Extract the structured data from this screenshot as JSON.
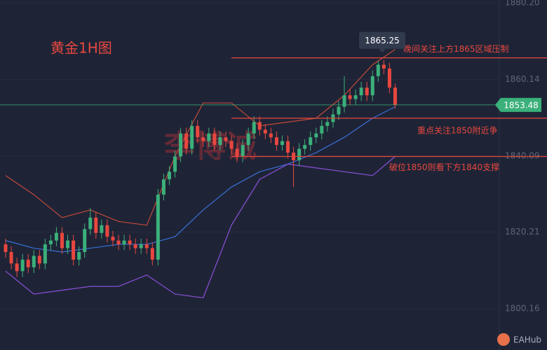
{
  "chart_data": {
    "type": "candlestick",
    "title": "黄金1H图",
    "watermark": "李博诚",
    "brand": "EAHub",
    "ylim": [
      1789.36,
      1880.93
    ],
    "yticks": [
      {
        "value": 1880.2,
        "label": "1880.20"
      },
      1860.14,
      1840.09,
      1820.21,
      1800.16
    ],
    "grid": true,
    "up_color": "#3bb07a",
    "down_color": "#e8473f",
    "open": [
      1817,
      1815,
      1812,
      1810,
      1813,
      1811,
      1814,
      1812,
      1817,
      1818,
      1820,
      1816,
      1818,
      1813,
      1815,
      1821,
      1824,
      1820,
      1822,
      1819,
      1818,
      1817,
      1818,
      1817,
      1816,
      1817,
      1816,
      1813,
      1830,
      1834,
      1836,
      1840,
      1846,
      1842,
      1848,
      1845,
      1844,
      1846,
      1843,
      1845,
      1844,
      1842,
      1840,
      1843,
      1846,
      1849,
      1847,
      1846,
      1845,
      1843,
      1844,
      1841,
      1839,
      1842,
      1843,
      1845,
      1846,
      1848,
      1849,
      1851,
      1853,
      1856,
      1855,
      1856,
      1858,
      1856,
      1861,
      1864,
      1863,
      1858
    ],
    "high": [
      1818.5,
      1816.5,
      1813.5,
      1814.5,
      1814.5,
      1815.5,
      1815.5,
      1818.5,
      1819.5,
      1821.5,
      1821.5,
      1819.5,
      1819.5,
      1816.5,
      1822.5,
      1826.5,
      1825.5,
      1823.5,
      1823.5,
      1820.5,
      1819.5,
      1819.5,
      1819.5,
      1818.5,
      1818.5,
      1818.5,
      1817.5,
      1831.5,
      1835.5,
      1837.5,
      1841.5,
      1847.5,
      1847.5,
      1849.5,
      1849.5,
      1846.5,
      1847.5,
      1847.5,
      1846.5,
      1846.5,
      1845.5,
      1843.5,
      1844.5,
      1847.5,
      1850.5,
      1850.5,
      1848.5,
      1847.5,
      1846.5,
      1845.5,
      1845.5,
      1842.5,
      1843.5,
      1844.5,
      1846.5,
      1847.5,
      1849.5,
      1850.5,
      1852.5,
      1854.5,
      1861,
      1857.5,
      1857.5,
      1859.5,
      1859.5,
      1862.5,
      1865,
      1865.25,
      1864.5,
      1859
    ],
    "low": [
      1813.5,
      1810.5,
      1808.5,
      1808.5,
      1809.5,
      1809.5,
      1810.5,
      1810.5,
      1815.5,
      1816.5,
      1814.5,
      1814.5,
      1811.5,
      1811.5,
      1813.5,
      1819.5,
      1818.5,
      1818.5,
      1817.5,
      1816.5,
      1815.5,
      1815.5,
      1815.5,
      1814.5,
      1814.5,
      1814.5,
      1811.5,
      1811.5,
      1828.5,
      1832.5,
      1834.5,
      1838.5,
      1840.5,
      1840.5,
      1843.5,
      1842.5,
      1842.5,
      1841.5,
      1841.5,
      1842.5,
      1840.5,
      1838.5,
      1838.5,
      1841.5,
      1844.5,
      1845.5,
      1844.5,
      1843.5,
      1841.5,
      1841.5,
      1839.5,
      1832,
      1837.5,
      1840.5,
      1841.5,
      1843.5,
      1844.5,
      1846.5,
      1847.5,
      1849.5,
      1851.5,
      1853.5,
      1853.5,
      1854.5,
      1854.5,
      1854.5,
      1859.5,
      1861.5,
      1856.5,
      1852.5
    ],
    "close": [
      1815,
      1812,
      1810,
      1813,
      1811,
      1814,
      1812,
      1817,
      1818,
      1820,
      1816,
      1818,
      1813,
      1815,
      1821,
      1824,
      1820,
      1822,
      1819,
      1818,
      1817,
      1818,
      1817,
      1816,
      1817,
      1816,
      1813,
      1830,
      1834,
      1836,
      1840,
      1846,
      1842,
      1848,
      1845,
      1844,
      1846,
      1843,
      1845,
      1844,
      1842,
      1840,
      1843,
      1846,
      1849,
      1847,
      1846,
      1845,
      1843,
      1844,
      1841,
      1839,
      1842,
      1843,
      1845,
      1846,
      1848,
      1849,
      1851,
      1853,
      1856,
      1855,
      1856,
      1858,
      1856,
      1861,
      1864,
      1863,
      1858,
      1853.48
    ],
    "bands": [
      {
        "color": "#c0483a",
        "x": [
          0,
          5,
          10,
          15,
          20,
          25,
          30,
          35,
          40,
          45,
          50,
          55,
          60,
          65,
          69
        ],
        "values": [
          1835,
          1830,
          1824,
          1826,
          1823,
          1822,
          1840,
          1854,
          1854,
          1848,
          1849,
          1850,
          1856,
          1864,
          1868
        ]
      },
      {
        "color": "#3a6fd8",
        "x": [
          0,
          5,
          10,
          15,
          20,
          25,
          30,
          35,
          40,
          45,
          50,
          55,
          60,
          65,
          69
        ],
        "values": [
          1818,
          1816,
          1815,
          1816,
          1817,
          1817,
          1819,
          1826,
          1832,
          1836,
          1838,
          1841,
          1845,
          1850,
          1853
        ]
      },
      {
        "color": "#8a4fd8",
        "x": [
          0,
          5,
          10,
          15,
          20,
          25,
          30,
          35,
          40,
          45,
          50,
          55,
          60,
          65,
          69
        ],
        "values": [
          1810,
          1804,
          1805,
          1806,
          1806,
          1809,
          1804,
          1803,
          1822,
          1834,
          1838,
          1837,
          1836,
          1835,
          1840
        ]
      }
    ],
    "levels": [
      {
        "value": 1865.8,
        "label": "晚间关注上方1865区域压制",
        "color": "#e8473f"
      },
      {
        "value": 1850,
        "label": "重点关注1850附近争",
        "color": "#e8473f"
      },
      {
        "value": 1840,
        "label": "破位1850则看下方1840支撑",
        "color": "#e8473f"
      }
    ],
    "current_price": 1853.48,
    "current_color": "#3bb07a",
    "marker_price": 1865.25
  }
}
